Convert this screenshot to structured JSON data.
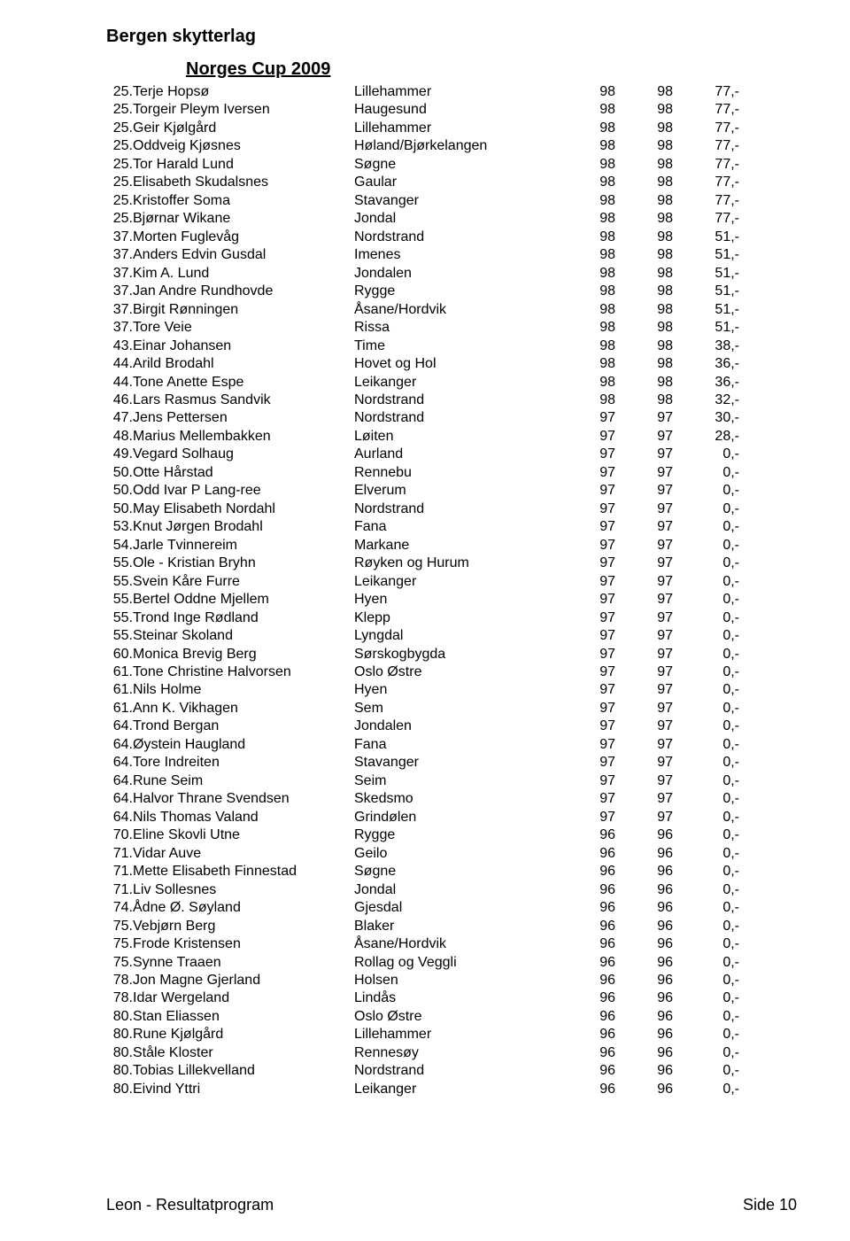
{
  "header": {
    "title": "Bergen skytterlag",
    "subtitle": "Norges Cup 2009"
  },
  "columns": {
    "rank_width": 30,
    "name_width": 250,
    "club_width": 230,
    "score1_width": 65,
    "score2_width": 65,
    "prize_width": 75
  },
  "font": {
    "family": "Arial",
    "body_size": 16,
    "header_size": 20
  },
  "colors": {
    "text": "#000000",
    "background": "#ffffff"
  },
  "rows": [
    {
      "rank": "25.",
      "name": "Terje Hopsø",
      "club": "Lillehammer",
      "s1": "98",
      "s2": "98",
      "prize": "77,-"
    },
    {
      "rank": "25.",
      "name": "Torgeir Pleym Iversen",
      "club": "Haugesund",
      "s1": "98",
      "s2": "98",
      "prize": "77,-"
    },
    {
      "rank": "25.",
      "name": "Geir Kjølgård",
      "club": "Lillehammer",
      "s1": "98",
      "s2": "98",
      "prize": "77,-"
    },
    {
      "rank": "25.",
      "name": "Oddveig Kjøsnes",
      "club": "Høland/Bjørkelangen",
      "s1": "98",
      "s2": "98",
      "prize": "77,-"
    },
    {
      "rank": "25.",
      "name": "Tor Harald Lund",
      "club": "Søgne",
      "s1": "98",
      "s2": "98",
      "prize": "77,-"
    },
    {
      "rank": "25.",
      "name": "Elisabeth Skudalsnes",
      "club": "Gaular",
      "s1": "98",
      "s2": "98",
      "prize": "77,-"
    },
    {
      "rank": "25.",
      "name": "Kristoffer Soma",
      "club": "Stavanger",
      "s1": "98",
      "s2": "98",
      "prize": "77,-"
    },
    {
      "rank": "25.",
      "name": "Bjørnar Wikane",
      "club": "Jondal",
      "s1": "98",
      "s2": "98",
      "prize": "77,-"
    },
    {
      "rank": "37.",
      "name": "Morten Fuglevåg",
      "club": "Nordstrand",
      "s1": "98",
      "s2": "98",
      "prize": "51,-"
    },
    {
      "rank": "37.",
      "name": "Anders Edvin Gusdal",
      "club": "Imenes",
      "s1": "98",
      "s2": "98",
      "prize": "51,-"
    },
    {
      "rank": "37.",
      "name": "Kim A. Lund",
      "club": "Jondalen",
      "s1": "98",
      "s2": "98",
      "prize": "51,-"
    },
    {
      "rank": "37.",
      "name": "Jan Andre Rundhovde",
      "club": "Rygge",
      "s1": "98",
      "s2": "98",
      "prize": "51,-"
    },
    {
      "rank": "37.",
      "name": "Birgit Rønningen",
      "club": "Åsane/Hordvik",
      "s1": "98",
      "s2": "98",
      "prize": "51,-"
    },
    {
      "rank": "37.",
      "name": "Tore Veie",
      "club": "Rissa",
      "s1": "98",
      "s2": "98",
      "prize": "51,-"
    },
    {
      "rank": "43.",
      "name": "Einar Johansen",
      "club": "Time",
      "s1": "98",
      "s2": "98",
      "prize": "38,-"
    },
    {
      "rank": "44.",
      "name": "Arild Brodahl",
      "club": "Hovet og Hol",
      "s1": "98",
      "s2": "98",
      "prize": "36,-"
    },
    {
      "rank": "44.",
      "name": "Tone Anette Espe",
      "club": "Leikanger",
      "s1": "98",
      "s2": "98",
      "prize": "36,-"
    },
    {
      "rank": "46.",
      "name": "Lars Rasmus Sandvik",
      "club": "Nordstrand",
      "s1": "98",
      "s2": "98",
      "prize": "32,-"
    },
    {
      "rank": "47.",
      "name": "Jens Pettersen",
      "club": "Nordstrand",
      "s1": "97",
      "s2": "97",
      "prize": "30,-"
    },
    {
      "rank": "48.",
      "name": "Marius Mellembakken",
      "club": "Løiten",
      "s1": "97",
      "s2": "97",
      "prize": "28,-"
    },
    {
      "rank": "49.",
      "name": "Vegard Solhaug",
      "club": "Aurland",
      "s1": "97",
      "s2": "97",
      "prize": "0,-"
    },
    {
      "rank": "50.",
      "name": "Otte Hårstad",
      "club": "Rennebu",
      "s1": "97",
      "s2": "97",
      "prize": "0,-"
    },
    {
      "rank": "50.",
      "name": "Odd Ivar P Lang-ree",
      "club": "Elverum",
      "s1": "97",
      "s2": "97",
      "prize": "0,-"
    },
    {
      "rank": "50.",
      "name": "May Elisabeth Nordahl",
      "club": "Nordstrand",
      "s1": "97",
      "s2": "97",
      "prize": "0,-"
    },
    {
      "rank": "53.",
      "name": "Knut Jørgen Brodahl",
      "club": "Fana",
      "s1": "97",
      "s2": "97",
      "prize": "0,-"
    },
    {
      "rank": "54.",
      "name": "Jarle Tvinnereim",
      "club": "Markane",
      "s1": "97",
      "s2": "97",
      "prize": "0,-"
    },
    {
      "rank": "55.",
      "name": "Ole - Kristian Bryhn",
      "club": "Røyken og Hurum",
      "s1": "97",
      "s2": "97",
      "prize": "0,-"
    },
    {
      "rank": "55.",
      "name": "Svein Kåre Furre",
      "club": "Leikanger",
      "s1": "97",
      "s2": "97",
      "prize": "0,-"
    },
    {
      "rank": "55.",
      "name": "Bertel Oddne Mjellem",
      "club": "Hyen",
      "s1": "97",
      "s2": "97",
      "prize": "0,-"
    },
    {
      "rank": "55.",
      "name": "Trond Inge Rødland",
      "club": "Klepp",
      "s1": "97",
      "s2": "97",
      "prize": "0,-"
    },
    {
      "rank": "55.",
      "name": "Steinar Skoland",
      "club": "Lyngdal",
      "s1": "97",
      "s2": "97",
      "prize": "0,-"
    },
    {
      "rank": "60.",
      "name": "Monica Brevig Berg",
      "club": "Sørskogbygda",
      "s1": "97",
      "s2": "97",
      "prize": "0,-"
    },
    {
      "rank": "61.",
      "name": "Tone Christine Halvorsen",
      "club": "Oslo Østre",
      "s1": "97",
      "s2": "97",
      "prize": "0,-"
    },
    {
      "rank": "61.",
      "name": "Nils Holme",
      "club": "Hyen",
      "s1": "97",
      "s2": "97",
      "prize": "0,-"
    },
    {
      "rank": "61.",
      "name": "Ann K. Vikhagen",
      "club": "Sem",
      "s1": "97",
      "s2": "97",
      "prize": "0,-"
    },
    {
      "rank": "64.",
      "name": "Trond Bergan",
      "club": "Jondalen",
      "s1": "97",
      "s2": "97",
      "prize": "0,-"
    },
    {
      "rank": "64.",
      "name": "Øystein Haugland",
      "club": "Fana",
      "s1": "97",
      "s2": "97",
      "prize": "0,-"
    },
    {
      "rank": "64.",
      "name": "Tore Indreiten",
      "club": "Stavanger",
      "s1": "97",
      "s2": "97",
      "prize": "0,-"
    },
    {
      "rank": "64.",
      "name": "Rune Seim",
      "club": "Seim",
      "s1": "97",
      "s2": "97",
      "prize": "0,-"
    },
    {
      "rank": "64.",
      "name": "Halvor Thrane Svendsen",
      "club": "Skedsmo",
      "s1": "97",
      "s2": "97",
      "prize": "0,-"
    },
    {
      "rank": "64.",
      "name": "Nils Thomas Valand",
      "club": "Grindølen",
      "s1": "97",
      "s2": "97",
      "prize": "0,-"
    },
    {
      "rank": "70.",
      "name": "Eline Skovli Utne",
      "club": "Rygge",
      "s1": "96",
      "s2": "96",
      "prize": "0,-"
    },
    {
      "rank": "71.",
      "name": "Vidar Auve",
      "club": "Geilo",
      "s1": "96",
      "s2": "96",
      "prize": "0,-"
    },
    {
      "rank": "71.",
      "name": "Mette Elisabeth Finnestad",
      "club": "Søgne",
      "s1": "96",
      "s2": "96",
      "prize": "0,-"
    },
    {
      "rank": "71.",
      "name": "Liv Sollesnes",
      "club": "Jondal",
      "s1": "96",
      "s2": "96",
      "prize": "0,-"
    },
    {
      "rank": "74.",
      "name": "Ådne Ø. Søyland",
      "club": "Gjesdal",
      "s1": "96",
      "s2": "96",
      "prize": "0,-"
    },
    {
      "rank": "75.",
      "name": "Vebjørn Berg",
      "club": "Blaker",
      "s1": "96",
      "s2": "96",
      "prize": "0,-"
    },
    {
      "rank": "75.",
      "name": "Frode Kristensen",
      "club": "Åsane/Hordvik",
      "s1": "96",
      "s2": "96",
      "prize": "0,-"
    },
    {
      "rank": "75.",
      "name": "Synne Traaen",
      "club": "Rollag og Veggli",
      "s1": "96",
      "s2": "96",
      "prize": "0,-"
    },
    {
      "rank": "78.",
      "name": "Jon Magne Gjerland",
      "club": "Holsen",
      "s1": "96",
      "s2": "96",
      "prize": "0,-"
    },
    {
      "rank": "78.",
      "name": "Idar Wergeland",
      "club": "Lindås",
      "s1": "96",
      "s2": "96",
      "prize": "0,-"
    },
    {
      "rank": "80.",
      "name": "Stan Eliassen",
      "club": "Oslo Østre",
      "s1": "96",
      "s2": "96",
      "prize": "0,-"
    },
    {
      "rank": "80.",
      "name": "Rune Kjølgård",
      "club": "Lillehammer",
      "s1": "96",
      "s2": "96",
      "prize": "0,-"
    },
    {
      "rank": "80.",
      "name": "Ståle Kloster",
      "club": "Rennesøy",
      "s1": "96",
      "s2": "96",
      "prize": "0,-"
    },
    {
      "rank": "80.",
      "name": "Tobias Lillekvelland",
      "club": "Nordstrand",
      "s1": "96",
      "s2": "96",
      "prize": "0,-"
    },
    {
      "rank": "80.",
      "name": "Eivind Yttri",
      "club": "Leikanger",
      "s1": "96",
      "s2": "96",
      "prize": "0,-"
    }
  ],
  "footer": {
    "program": "Leon - Resultatprogram",
    "page": "Side 10"
  }
}
